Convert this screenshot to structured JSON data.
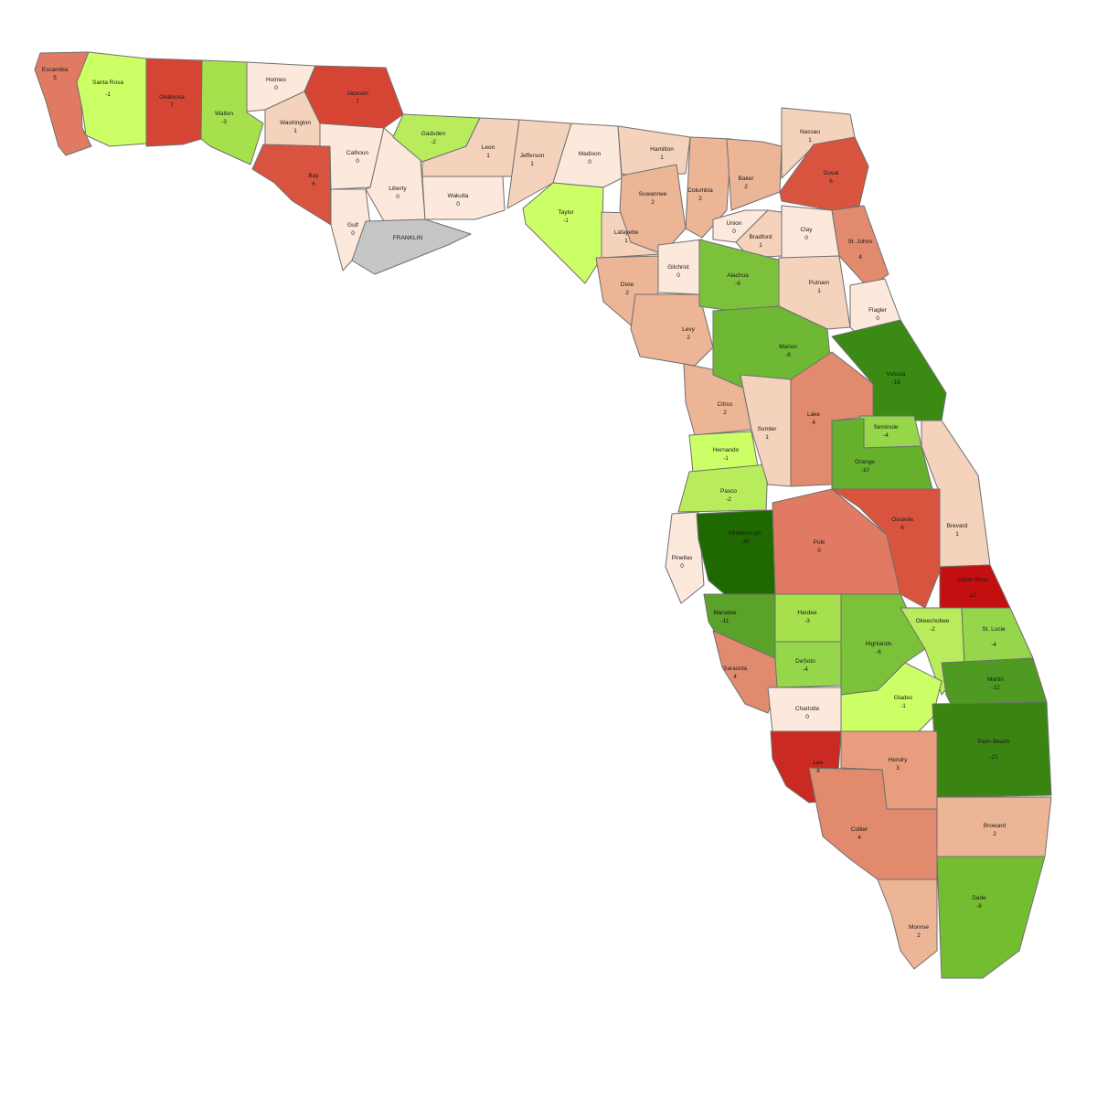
{
  "colors": {
    "background": "#ffffff",
    "border": "#6f6f6f",
    "no_data": "#c6c6c6"
  },
  "counties": [
    {
      "name": "Escambia",
      "value": "5",
      "color": "#e07a63"
    },
    {
      "name": "Santa Rosa",
      "value": "-1",
      "color": "#ccff66"
    },
    {
      "name": "Okaloosa",
      "value": "7",
      "color": "#d64533"
    },
    {
      "name": "Walton",
      "value": "-3",
      "color": "#a6e14d"
    },
    {
      "name": "Holmes",
      "value": "0",
      "color": "#fde8dc"
    },
    {
      "name": "Jackson",
      "value": "7",
      "color": "#d64533"
    },
    {
      "name": "Washington",
      "value": "1",
      "color": "#f4d2bb"
    },
    {
      "name": "Bay",
      "value": "6",
      "color": "#d9543f"
    },
    {
      "name": "Calhoun",
      "value": "0",
      "color": "#fde8dc"
    },
    {
      "name": "Gulf",
      "value": "0",
      "color": "#fde8dc"
    },
    {
      "name": "Liberty",
      "value": "0",
      "color": "#fde8dc"
    },
    {
      "name": "FRANKLIN",
      "value": "",
      "color": "#c6c6c6"
    },
    {
      "name": "Gadsden",
      "value": "-2",
      "color": "#b8ec5c"
    },
    {
      "name": "Leon",
      "value": "1",
      "color": "#f4d2bb"
    },
    {
      "name": "Wakulla",
      "value": "0",
      "color": "#fde8dc"
    },
    {
      "name": "Jefferson",
      "value": "1",
      "color": "#f4d2bb"
    },
    {
      "name": "Madison",
      "value": "0",
      "color": "#fde8dc"
    },
    {
      "name": "Taylor",
      "value": "-1",
      "color": "#ccff66"
    },
    {
      "name": "Hamilton",
      "value": "1",
      "color": "#f4d2bb"
    },
    {
      "name": "Suwannee",
      "value": "2",
      "color": "#ebb596"
    },
    {
      "name": "Lafayette",
      "value": "1",
      "color": "#f4d2bb"
    },
    {
      "name": "Columbia",
      "value": "2",
      "color": "#ebb596"
    },
    {
      "name": "Baker",
      "value": "2",
      "color": "#ebb596"
    },
    {
      "name": "Nassau",
      "value": "1",
      "color": "#f4d2bb"
    },
    {
      "name": "Duval",
      "value": "6",
      "color": "#d9543f"
    },
    {
      "name": "Union",
      "value": "0",
      "color": "#fde8dc"
    },
    {
      "name": "Bradford",
      "value": "1",
      "color": "#f4d2bb"
    },
    {
      "name": "Clay",
      "value": "0",
      "color": "#fde8dc"
    },
    {
      "name": "St. Johns",
      "value": "4",
      "color": "#e28a6d"
    },
    {
      "name": "Gilchrist",
      "value": "0",
      "color": "#fde8dc"
    },
    {
      "name": "Alachua",
      "value": "-6",
      "color": "#7cc13a"
    },
    {
      "name": "Dixie",
      "value": "2",
      "color": "#ebb596"
    },
    {
      "name": "Putnam",
      "value": "1",
      "color": "#f4d2bb"
    },
    {
      "name": "Flagler",
      "value": "0",
      "color": "#fde8dc"
    },
    {
      "name": "Levy",
      "value": "2",
      "color": "#ebb596"
    },
    {
      "name": "Marion",
      "value": "-8",
      "color": "#6eb834"
    },
    {
      "name": "Volusia",
      "value": "-19",
      "color": "#3a8a14"
    },
    {
      "name": "Citrus",
      "value": "2",
      "color": "#ebb596"
    },
    {
      "name": "Sumter",
      "value": "1",
      "color": "#f4d2bb"
    },
    {
      "name": "Lake",
      "value": "4",
      "color": "#e28a6d"
    },
    {
      "name": "Seminole",
      "value": "-4",
      "color": "#95d64a"
    },
    {
      "name": "Hernando",
      "value": "-1",
      "color": "#ccff66"
    },
    {
      "name": "Orange",
      "value": "-10",
      "color": "#66b02d"
    },
    {
      "name": "Pasco",
      "value": "-2",
      "color": "#b8ec5c"
    },
    {
      "name": "Brevard",
      "value": "1",
      "color": "#f4d2bb"
    },
    {
      "name": "Hillsborough",
      "value": "-36",
      "color": "#1f6a00"
    },
    {
      "name": "Pinellas",
      "value": "0",
      "color": "#fde8dc"
    },
    {
      "name": "Polk",
      "value": "5",
      "color": "#e07a63"
    },
    {
      "name": "Osceola",
      "value": "6",
      "color": "#d9543f"
    },
    {
      "name": "Indian River",
      "value": "12",
      "color": "#c40f10"
    },
    {
      "name": "Manatee",
      "value": "-11",
      "color": "#5aa228"
    },
    {
      "name": "Hardee",
      "value": "-3",
      "color": "#a6e14d"
    },
    {
      "name": "Highlands",
      "value": "-6",
      "color": "#7cc13a"
    },
    {
      "name": "Okeechobee",
      "value": "-2",
      "color": "#b8ec5c"
    },
    {
      "name": "St. Lucie",
      "value": "-4",
      "color": "#95d64a"
    },
    {
      "name": "DeSoto",
      "value": "-4",
      "color": "#95d64a"
    },
    {
      "name": "Sarasota",
      "value": "4",
      "color": "#e28a6d"
    },
    {
      "name": "Martin",
      "value": "-12",
      "color": "#4e9a22"
    },
    {
      "name": "Glades",
      "value": "-1",
      "color": "#ccff66"
    },
    {
      "name": "Charlotte",
      "value": "0",
      "color": "#fde8dc"
    },
    {
      "name": "Palm Beach",
      "value": "-21",
      "color": "#3a8511"
    },
    {
      "name": "Lee",
      "value": "8",
      "color": "#cb2a22"
    },
    {
      "name": "Hendry",
      "value": "3",
      "color": "#e89e7e"
    },
    {
      "name": "Collier",
      "value": "4",
      "color": "#e28a6d"
    },
    {
      "name": "Broward",
      "value": "2",
      "color": "#ebb596"
    },
    {
      "name": "Dade",
      "value": "-8",
      "color": "#75bd30"
    },
    {
      "name": "Monroe",
      "value": "2",
      "color": "#ebb596"
    }
  ]
}
